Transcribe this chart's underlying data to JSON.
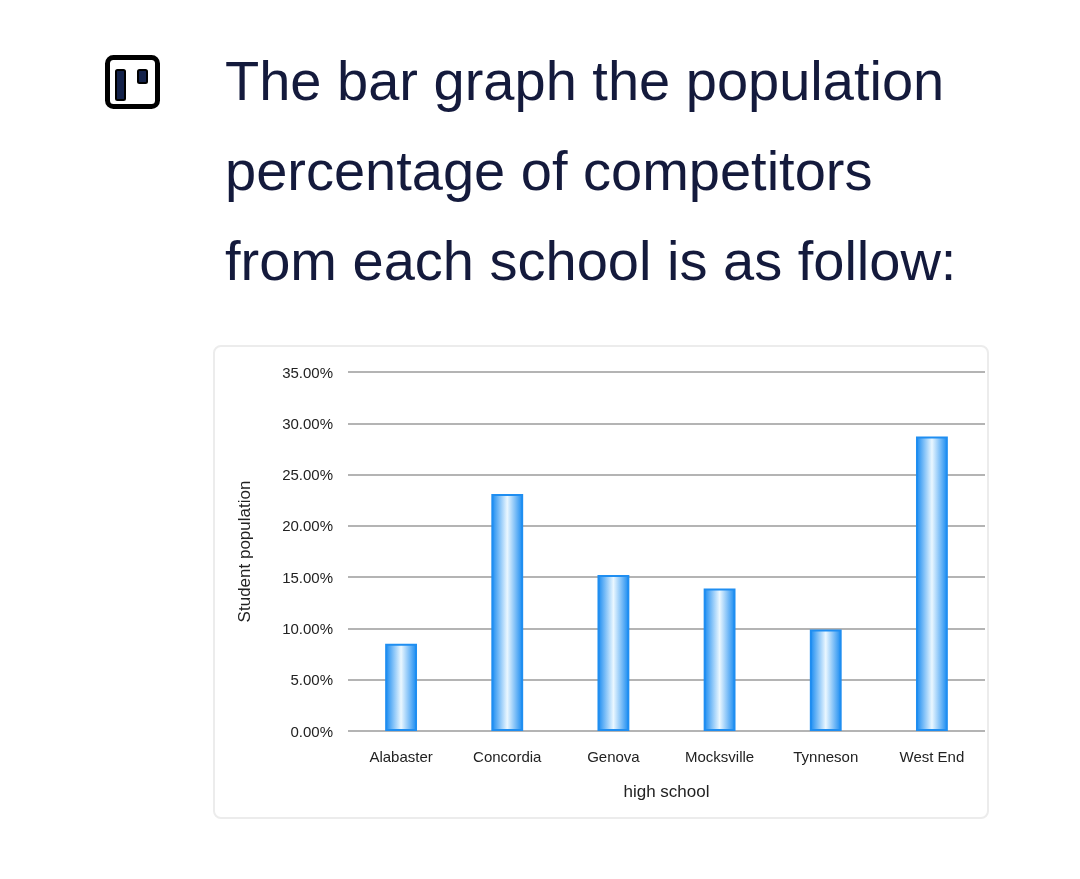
{
  "chart_data": {
    "type": "bar",
    "title": "The bar graph the population percentage of competitors from each school is as follow:",
    "xlabel": "high school",
    "ylabel": "Student population",
    "categories": [
      "Alabaster",
      "Concordia",
      "Genova",
      "Mocksville",
      "Tynneson",
      "West End"
    ],
    "values": [
      8.5,
      23.1,
      15.2,
      13.9,
      9.9,
      28.7
    ],
    "color": "#1f8ef1",
    "ylim": [
      0,
      35
    ],
    "yticks": [
      {
        "value": 0,
        "label": "0.00%"
      },
      {
        "value": 5,
        "label": "5.00%"
      },
      {
        "value": 10,
        "label": "10.00%"
      },
      {
        "value": 15,
        "label": "15.00%"
      },
      {
        "value": 20,
        "label": "20.00%"
      },
      {
        "value": 25,
        "label": "25.00%"
      },
      {
        "value": 30,
        "label": "30.00%"
      },
      {
        "value": 35,
        "label": "35.00%"
      }
    ],
    "grid": "y"
  }
}
